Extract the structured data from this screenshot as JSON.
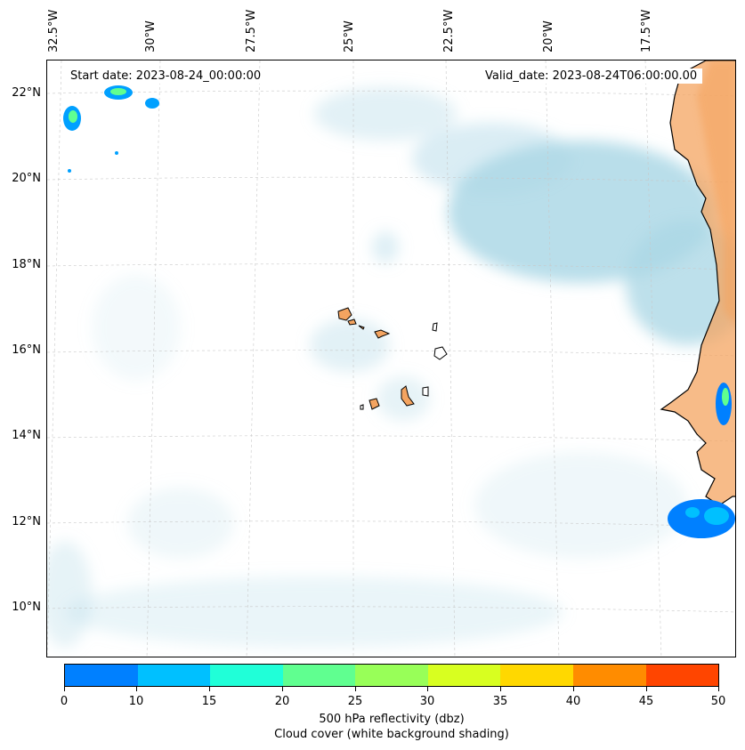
{
  "map": {
    "start_date": "Start date: 2023-08-24_00:00:00",
    "valid_date": "Valid_date: 2023-08-24T06:00:00.00",
    "lon_labels": [
      "32.5°W",
      "30°W",
      "27.5°W",
      "25°W",
      "22.5°W",
      "20°W",
      "17.5°W"
    ],
    "lat_labels": [
      "22°N",
      "20°N",
      "18°N",
      "16°N",
      "14°N",
      "12°N",
      "10°N"
    ],
    "land_color": "#f4a460",
    "cloud_color": "#add8e6"
  },
  "colorbar": {
    "ticks": [
      "0",
      "10",
      "15",
      "20",
      "25",
      "30",
      "35",
      "40",
      "45",
      "50"
    ],
    "colors": [
      "#0080ff",
      "#00c0ff",
      "#20ffd8",
      "#60ff90",
      "#98ff58",
      "#d8ff20",
      "#ffd800",
      "#ff8c00",
      "#ff4500"
    ],
    "title_line1": "500 hPa reflectivity (dbz)",
    "title_line2": "Cloud cover (white background shading)"
  }
}
